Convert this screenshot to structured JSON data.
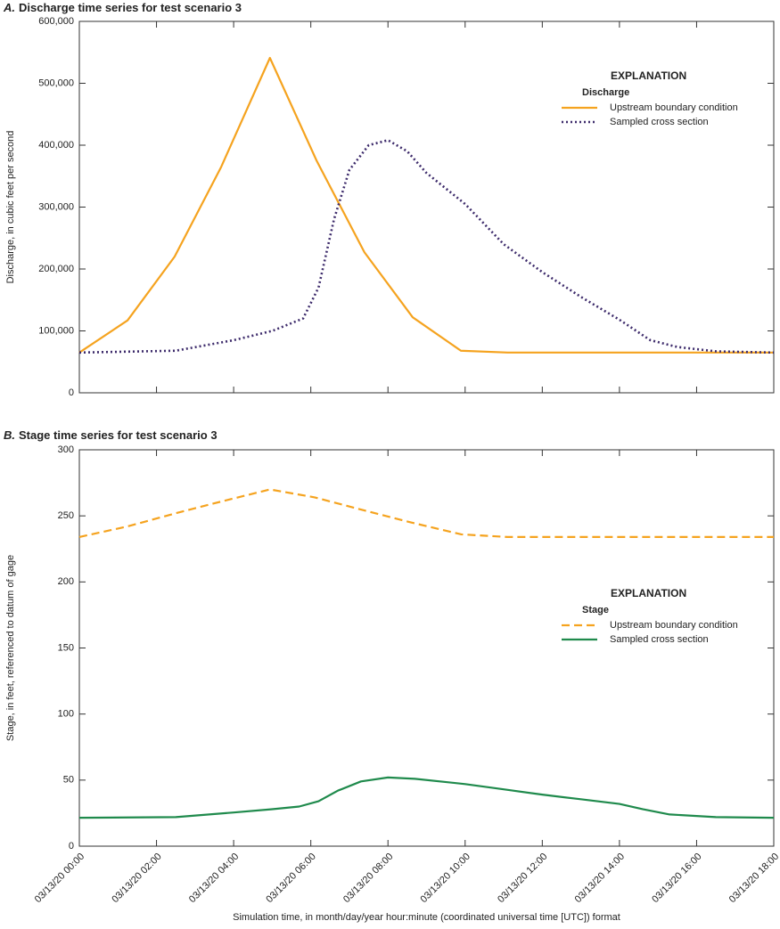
{
  "chart_data": [
    {
      "type": "line",
      "panel_letter": "A.",
      "title": "Discharge time series for test scenario 3",
      "ylabel": "Discharge, in cubic feet per second",
      "xlim": [
        0,
        18
      ],
      "xticks": [
        0,
        2,
        4,
        6,
        8,
        10,
        12,
        14,
        16,
        18
      ],
      "xtick_labels": false,
      "ylim": [
        0,
        600000
      ],
      "yticks": [
        0,
        {
          "value": 100000,
          "label": "100,000"
        },
        {
          "value": 200000,
          "label": "200,000"
        },
        {
          "value": 300000,
          "label": "300,000"
        },
        {
          "value": 400000,
          "label": "400,000"
        },
        {
          "value": 500000,
          "label": "500,000"
        },
        {
          "value": 600000,
          "label": "600,000"
        }
      ],
      "legend_title": "EXPLANATION",
      "legend_group": "Discharge",
      "legend_position": "upper right",
      "series": [
        {
          "name": "Upstream boundary condition",
          "color": "#f5a31f",
          "dash": "solid",
          "x": [
            0,
            1.25,
            2.47,
            3.67,
            4.94,
            6.15,
            7.39,
            8.64,
            9.89,
            11.1,
            18
          ],
          "values": [
            65000,
            117000,
            220000,
            364000,
            541000,
            375000,
            227000,
            122000,
            68000,
            65000,
            65000
          ]
        },
        {
          "name": "Sampled cross section",
          "color": "#3d2b6b",
          "dash": "dotted",
          "x": [
            0,
            2.5,
            4,
            5,
            5.8,
            6.2,
            6.6,
            7,
            7.5,
            8,
            8.5,
            9,
            10,
            11,
            12,
            13,
            14,
            14.8,
            15.5,
            16.5,
            18
          ],
          "values": [
            65000,
            68000,
            85000,
            100000,
            120000,
            170000,
            280000,
            360000,
            400000,
            408000,
            390000,
            355000,
            305000,
            240000,
            195000,
            155000,
            118000,
            85000,
            74000,
            67000,
            65000
          ]
        }
      ]
    },
    {
      "type": "line",
      "panel_letter": "B.",
      "title": "Stage time series for test scenario 3",
      "ylabel": "Stage, in feet, referenced to datum of gage",
      "xlabel": "Simulation time, in month/day/year hour:minute (coordinated universal time [UTC]) format",
      "xlim": [
        0,
        18
      ],
      "xticks": [
        {
          "value": 0,
          "label": "03/13/20 00:00"
        },
        {
          "value": 2,
          "label": "03/13/20 02:00"
        },
        {
          "value": 4,
          "label": "03/13/20 04:00"
        },
        {
          "value": 6,
          "label": "03/13/20 06:00"
        },
        {
          "value": 8,
          "label": "03/13/20 08:00"
        },
        {
          "value": 10,
          "label": "03/13/20 10:00"
        },
        {
          "value": 12,
          "label": "03/13/20 12:00"
        },
        {
          "value": 14,
          "label": "03/13/20 14:00"
        },
        {
          "value": 16,
          "label": "03/13/20 16:00"
        },
        {
          "value": 18,
          "label": "03/13/20 18:00"
        }
      ],
      "xtick_labels": true,
      "ylim": [
        0,
        300
      ],
      "yticks": [
        0,
        50,
        100,
        150,
        200,
        250,
        300
      ],
      "legend_title": "EXPLANATION",
      "legend_group": "Stage",
      "legend_position": "center right",
      "series": [
        {
          "name": "Upstream boundary condition",
          "color": "#f5a31f",
          "dash": "dashed",
          "x": [
            0,
            1.25,
            2.5,
            3.7,
            4.94,
            6.1,
            7.4,
            8.6,
            9.9,
            11.1,
            18
          ],
          "values": [
            234,
            242,
            252,
            261,
            270,
            264,
            254,
            245,
            236,
            234,
            234
          ]
        },
        {
          "name": "Sampled cross section",
          "color": "#1f8a4c",
          "dash": "solid",
          "x": [
            0,
            2.5,
            4,
            5,
            5.7,
            6.2,
            6.7,
            7.3,
            8,
            8.7,
            10,
            11,
            12,
            13,
            14,
            14.6,
            15.3,
            16.5,
            18
          ],
          "values": [
            21.5,
            22,
            25.5,
            28,
            30,
            34,
            42,
            49,
            52,
            51,
            47,
            43,
            39,
            35.5,
            32,
            28,
            24,
            22,
            21.5
          ]
        }
      ]
    }
  ]
}
